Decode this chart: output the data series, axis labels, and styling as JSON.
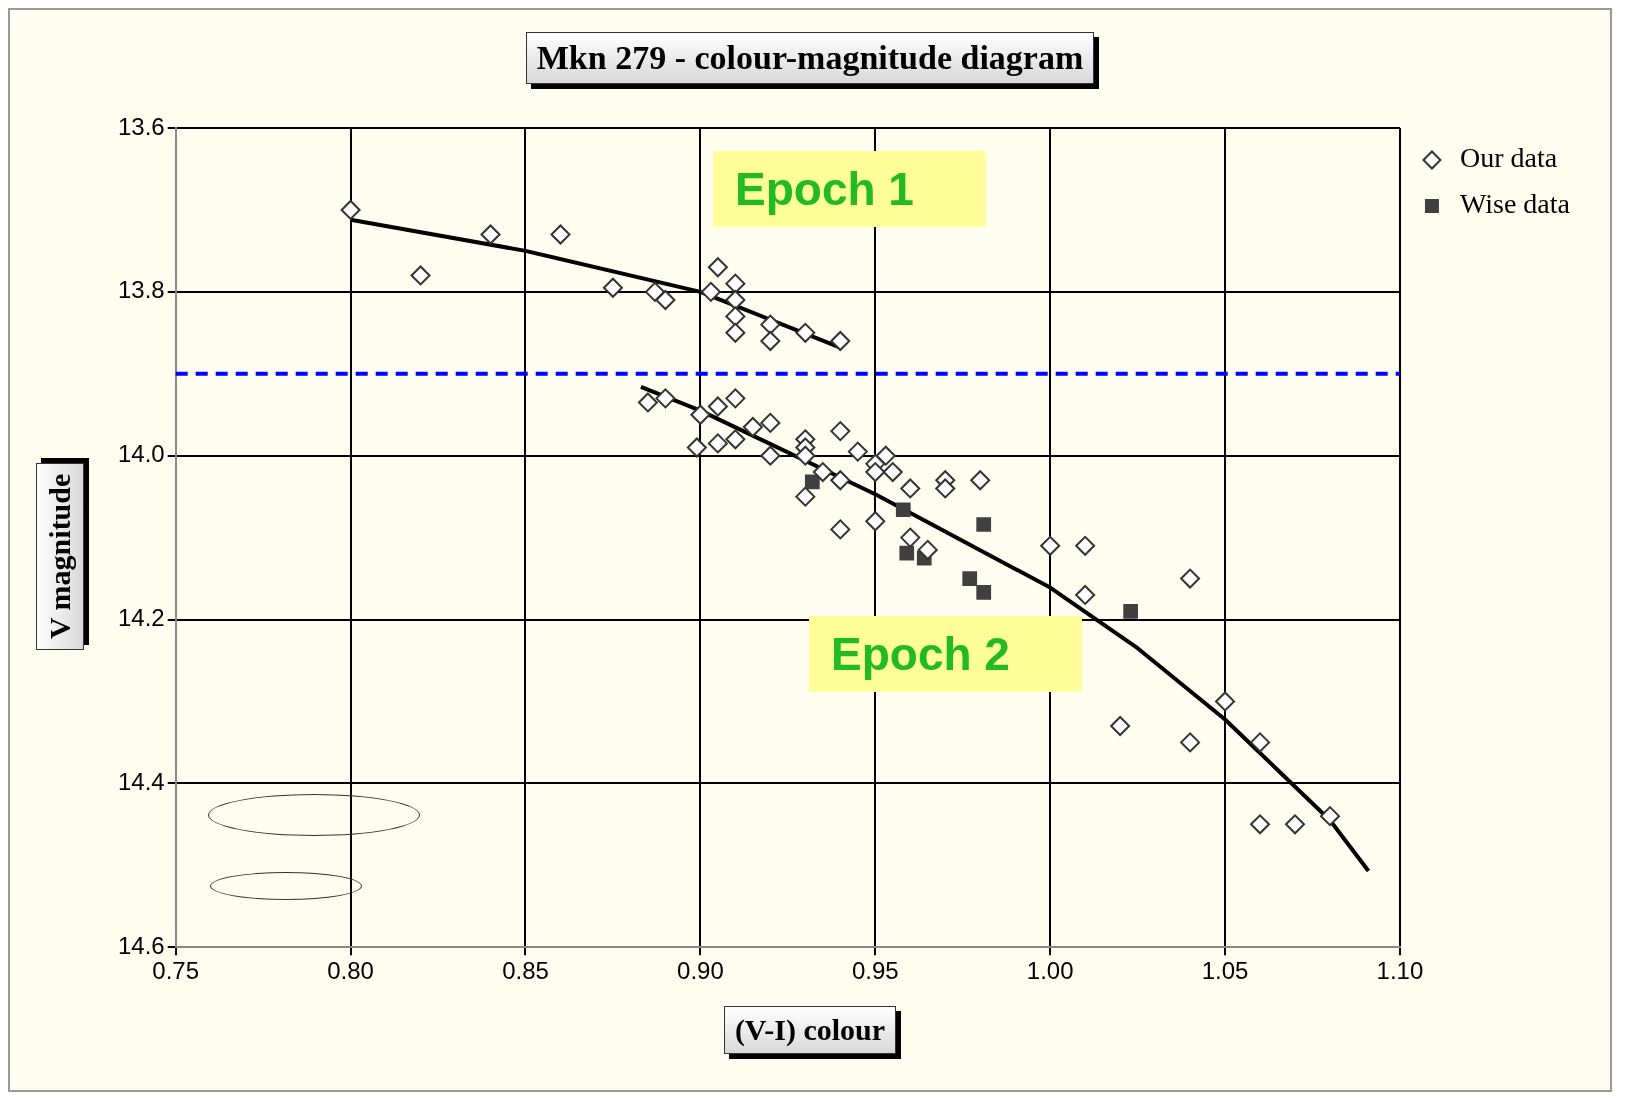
{
  "chart_data": {
    "type": "scatter",
    "title": "Mkn 279 - colour-magnitude diagram",
    "xlabel": "(V-I) colour",
    "ylabel": "V magnitude",
    "xlim": [
      0.75,
      1.1
    ],
    "xticks": [
      0.75,
      {
        "value": 0.8,
        "label": "0.80"
      },
      0.85,
      {
        "value": 0.9,
        "label": "0.90"
      },
      0.95,
      {
        "value": 1.0,
        "label": "1.00"
      },
      1.05,
      {
        "value": 1.1,
        "label": "1.10"
      }
    ],
    "ylim": [
      14.6,
      13.6
    ],
    "yticks": [
      13.6,
      13.8,
      {
        "value": 14.0,
        "label": "14.0"
      },
      14.2,
      14.4,
      14.6
    ],
    "grid": true,
    "legend": "top right",
    "series": [
      {
        "name": "Our data",
        "type": "scatter",
        "marker": "diamond",
        "color": "#333333",
        "x": [
          0.8,
          0.82,
          0.84,
          0.86,
          0.875,
          0.887,
          0.89,
          0.905,
          0.903,
          0.91,
          0.91,
          0.91,
          0.91,
          0.92,
          0.92,
          0.93,
          0.94,
          0.885,
          0.89,
          0.899,
          0.9,
          0.905,
          0.905,
          0.91,
          0.91,
          0.915,
          0.92,
          0.92,
          0.93,
          0.93,
          0.93,
          0.93,
          0.935,
          0.94,
          0.94,
          0.94,
          0.945,
          0.95,
          0.95,
          0.95,
          0.953,
          0.955,
          0.96,
          0.96,
          0.965,
          0.97,
          0.97,
          0.98,
          1.0,
          1.01,
          1.01,
          1.02,
          1.04,
          1.04,
          1.05,
          1.06,
          1.06,
          1.07,
          1.08
        ],
        "values": [
          13.7,
          13.78,
          13.73,
          13.73,
          13.795,
          13.8,
          13.81,
          13.77,
          13.8,
          13.79,
          13.81,
          13.83,
          13.85,
          13.84,
          13.86,
          13.85,
          13.86,
          13.935,
          13.93,
          13.99,
          13.95,
          13.94,
          13.985,
          13.93,
          13.98,
          13.965,
          13.96,
          14.0,
          13.98,
          13.99,
          14.0,
          14.05,
          14.02,
          13.97,
          14.03,
          14.09,
          13.995,
          14.01,
          14.02,
          14.08,
          14.0,
          14.02,
          14.04,
          14.1,
          14.115,
          14.03,
          14.04,
          14.03,
          14.11,
          14.11,
          14.17,
          14.33,
          14.15,
          14.35,
          14.3,
          14.35,
          14.45,
          14.45,
          14.44
        ]
      },
      {
        "name": "Wise data",
        "type": "scatter",
        "marker": "square",
        "color": "#404040",
        "x": [
          0.932,
          0.958,
          0.981,
          0.959,
          0.964,
          0.977,
          0.981,
          1.023
        ],
        "values": [
          14.032,
          14.066,
          14.084,
          14.119,
          14.125,
          14.15,
          14.167,
          14.19
        ]
      },
      {
        "type": "line",
        "marker": "none",
        "color": "#000000",
        "x": [
          0.8,
          0.85,
          0.9,
          0.94
        ],
        "values": [
          13.712,
          13.75,
          13.8,
          13.868
        ]
      },
      {
        "type": "line",
        "marker": "none",
        "color": "#000000",
        "x": [
          0.883,
          0.9,
          0.95,
          1.0,
          1.025,
          1.05,
          1.08,
          1.091
        ],
        "values": [
          13.916,
          13.945,
          14.047,
          14.161,
          14.235,
          14.322,
          14.445,
          14.507
        ]
      }
    ],
    "ref_lines": [
      {
        "axis": "y",
        "value": 13.9,
        "color": "#0000ff",
        "line_style": "dashed"
      }
    ],
    "annotations": [
      "Epoch 1",
      "Epoch 2"
    ]
  }
}
